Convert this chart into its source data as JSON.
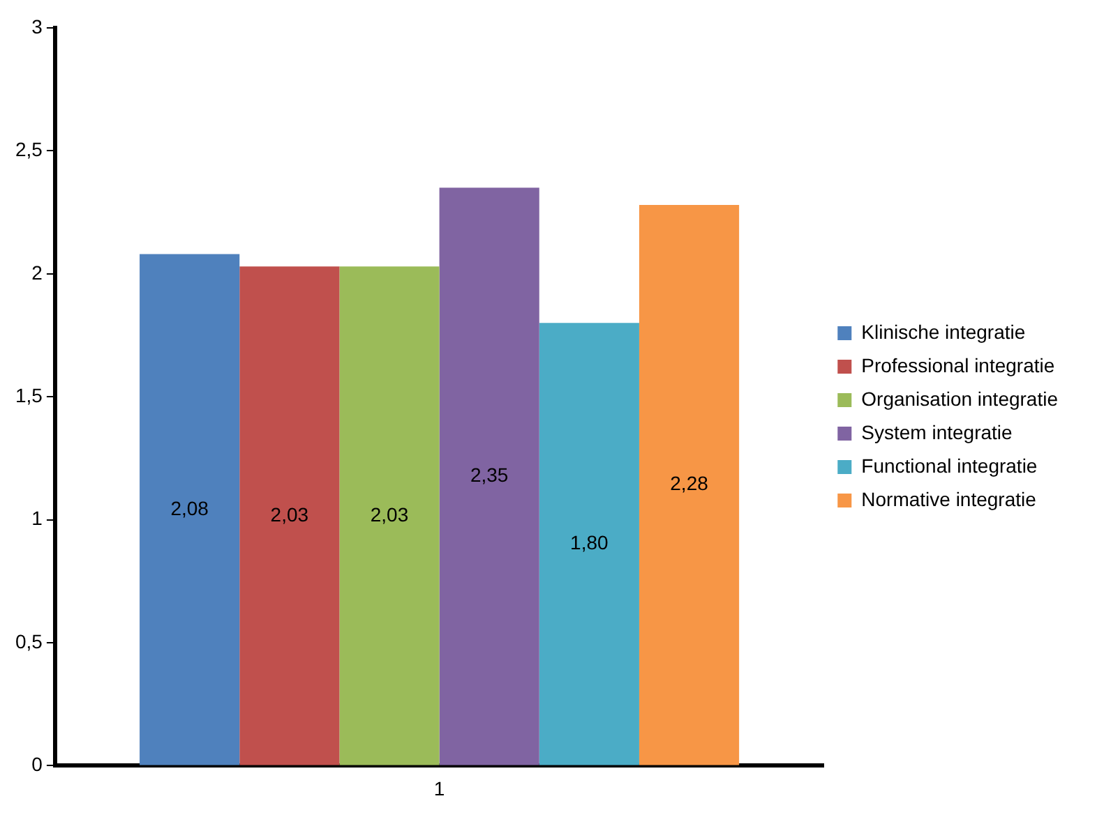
{
  "chart_data": {
    "type": "bar",
    "categories": [
      "1"
    ],
    "series": [
      {
        "name": "Klinische integratie",
        "color": "#4f81bd",
        "values": [
          2.08
        ],
        "value_labels": [
          "2,08"
        ]
      },
      {
        "name": "Professional integratie",
        "color": "#c0504d",
        "values": [
          2.03
        ],
        "value_labels": [
          "2,03"
        ]
      },
      {
        "name": "Organisation integratie",
        "color": "#9bbb59",
        "values": [
          2.03
        ],
        "value_labels": [
          "2,03"
        ]
      },
      {
        "name": "System integratie",
        "color": "#8064a2",
        "values": [
          2.35
        ],
        "value_labels": [
          "2,35"
        ]
      },
      {
        "name": "Functional integratie",
        "color": "#4bacc6",
        "values": [
          1.8
        ],
        "value_labels": [
          "1,80"
        ]
      },
      {
        "name": "Normative integratie",
        "color": "#f79646",
        "values": [
          2.28
        ],
        "value_labels": [
          "2,28"
        ]
      }
    ],
    "ylim": [
      0,
      3
    ],
    "yticks": [
      0,
      {
        "value": 0.5,
        "label": "0,5"
      },
      1,
      {
        "value": 1.5,
        "label": "1,5"
      },
      2,
      {
        "value": 2.5,
        "label": "2,5"
      },
      3
    ],
    "grid": false,
    "legend": "right"
  }
}
